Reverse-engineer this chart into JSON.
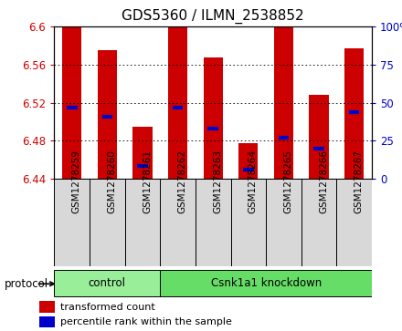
{
  "title": "GDS5360 / ILMN_2538852",
  "samples": [
    "GSM1278259",
    "GSM1278260",
    "GSM1278261",
    "GSM1278262",
    "GSM1278263",
    "GSM1278264",
    "GSM1278265",
    "GSM1278266",
    "GSM1278267"
  ],
  "bar_tops": [
    6.6,
    6.575,
    6.495,
    6.6,
    6.567,
    6.477,
    6.6,
    6.528,
    6.577
  ],
  "bar_bottoms": [
    6.44,
    6.44,
    6.44,
    6.44,
    6.44,
    6.44,
    6.44,
    6.44,
    6.44
  ],
  "blue_marks": [
    6.515,
    6.505,
    6.453,
    6.515,
    6.493,
    6.45,
    6.483,
    6.472,
    6.51
  ],
  "ylim": [
    6.44,
    6.6
  ],
  "yticks_left": [
    6.44,
    6.48,
    6.52,
    6.56,
    6.6
  ],
  "yticks_right": [
    0,
    25,
    50,
    75,
    100
  ],
  "bar_color": "#cc0000",
  "blue_color": "#0000cc",
  "title_fontsize": 11,
  "axis_label_color_left": "#cc0000",
  "axis_label_color_right": "#0000cc",
  "protocol_groups": [
    {
      "label": "control",
      "n_samples": 3,
      "color": "#99ee99"
    },
    {
      "label": "Csnk1a1 knockdown",
      "n_samples": 6,
      "color": "#66dd66"
    }
  ],
  "legend_items": [
    {
      "label": "transformed count",
      "color": "#cc0000"
    },
    {
      "label": "percentile rank within the sample",
      "color": "#0000cc"
    }
  ],
  "bar_width": 0.55,
  "sample_box_color": "#d8d8d8",
  "protocol_label": "protocol"
}
